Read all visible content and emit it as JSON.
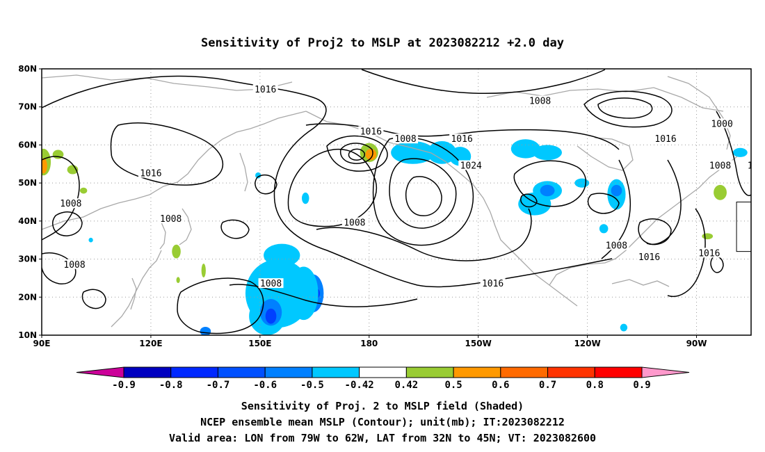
{
  "title": "Sensitivity of Proj2 to MSLP at 2023082212 +2.0 day",
  "map": {
    "lon_range": [
      90,
      285
    ],
    "lat_range": [
      10,
      80
    ],
    "x_ticks": [
      {
        "lon": 90,
        "label": "90E"
      },
      {
        "lon": 120,
        "label": "120E"
      },
      {
        "lon": 150,
        "label": "150E"
      },
      {
        "lon": 180,
        "label": "180"
      },
      {
        "lon": 210,
        "label": "150W"
      },
      {
        "lon": 240,
        "label": "120W"
      },
      {
        "lon": 270,
        "label": "90W"
      },
      {
        "lon": 300,
        "label": "60W"
      }
    ],
    "y_ticks": [
      {
        "lat": 80,
        "label": "80N"
      },
      {
        "lat": 70,
        "label": "70N"
      },
      {
        "lat": 60,
        "label": "60N"
      },
      {
        "lat": 50,
        "label": "50N"
      },
      {
        "lat": 40,
        "label": "40N"
      },
      {
        "lat": 30,
        "label": "30N"
      },
      {
        "lat": 20,
        "label": "20N"
      },
      {
        "lat": 10,
        "label": "10N"
      }
    ],
    "gridlines": true,
    "valid_area_box": {
      "lon": [
        281,
        298
      ],
      "lat": [
        32,
        45
      ]
    },
    "contour_labels": [
      {
        "text": "1016",
        "lon": 151.5,
        "lat": 74.5
      },
      {
        "text": "1008",
        "lon": 227,
        "lat": 71.5
      },
      {
        "text": "1000",
        "lon": 277,
        "lat": 65.5
      },
      {
        "text": "1016",
        "lon": 180.5,
        "lat": 63.5
      },
      {
        "text": "1008",
        "lon": 190,
        "lat": 61.5
      },
      {
        "text": "1016",
        "lon": 205.5,
        "lat": 61.5
      },
      {
        "text": "1016",
        "lon": 261.5,
        "lat": 61.5
      },
      {
        "text": "1016",
        "lon": 120,
        "lat": 52.5
      },
      {
        "text": "1024",
        "lon": 208,
        "lat": 54.5
      },
      {
        "text": "1008",
        "lon": 276.5,
        "lat": 54.5
      },
      {
        "text": "1016",
        "lon": 287,
        "lat": 54.5
      },
      {
        "text": "1008",
        "lon": 98,
        "lat": 44.5
      },
      {
        "text": "1008",
        "lon": 125.5,
        "lat": 40.5
      },
      {
        "text": "1008",
        "lon": 176,
        "lat": 39.5
      },
      {
        "text": "1008",
        "lon": 248,
        "lat": 33.5
      },
      {
        "text": "1016",
        "lon": 257,
        "lat": 30.5
      },
      {
        "text": "1016",
        "lon": 273.5,
        "lat": 31.5
      },
      {
        "text": "1008",
        "lon": 99,
        "lat": 28.5
      },
      {
        "text": "1008",
        "lon": 153,
        "lat": 23.5
      },
      {
        "text": "1016",
        "lon": 214,
        "lat": 23.5
      }
    ],
    "shaded_areas": [
      {
        "color": "#00c8ff",
        "lon": 155,
        "lat": 21,
        "rlon": 9,
        "rlat": 9
      },
      {
        "color": "#00c8ff",
        "lon": 152,
        "lat": 15,
        "rlon": 5,
        "rlat": 5
      },
      {
        "color": "#00c8ff",
        "lon": 156,
        "lat": 31,
        "rlon": 5,
        "rlat": 3
      },
      {
        "color": "#0080ff",
        "lon": 153,
        "lat": 16,
        "rlon": 3,
        "rlat": 3.5
      },
      {
        "color": "#0040ff",
        "lon": 153,
        "lat": 15,
        "rlon": 1.5,
        "rlat": 2
      },
      {
        "color": "#0080ff",
        "lon": 164.5,
        "lat": 21,
        "rlon": 3,
        "rlat": 5
      },
      {
        "color": "#0040ff",
        "lon": 165,
        "lat": 21,
        "rlon": 1.5,
        "rlat": 1.5
      },
      {
        "color": "#00c8ff",
        "lon": 162,
        "lat": 21,
        "rlon": 4,
        "rlat": 7
      },
      {
        "color": "#0080ff",
        "lon": 135,
        "lat": 11,
        "rlon": 1.5,
        "rlat": 1.2
      },
      {
        "color": "#00c8ff",
        "lon": 192,
        "lat": 58,
        "rlon": 6,
        "rlat": 3
      },
      {
        "color": "#00c8ff",
        "lon": 200,
        "lat": 58,
        "rlon": 4,
        "rlat": 3
      },
      {
        "color": "#00c8ff",
        "lon": 205,
        "lat": 57,
        "rlon": 3,
        "rlat": 2.5
      },
      {
        "color": "#00c8ff",
        "lon": 223,
        "lat": 59,
        "rlon": 4,
        "rlat": 2.5
      },
      {
        "color": "#00c8ff",
        "lon": 229,
        "lat": 58,
        "rlon": 4,
        "rlat": 2
      },
      {
        "color": "#00c8ff",
        "lon": 225.5,
        "lat": 44.5,
        "rlon": 4.5,
        "rlat": 3
      },
      {
        "color": "#00c8ff",
        "lon": 229,
        "lat": 48,
        "rlon": 4,
        "rlat": 2.5
      },
      {
        "color": "#0080ff",
        "lon": 229,
        "lat": 48,
        "rlon": 2,
        "rlat": 1.5
      },
      {
        "color": "#00c8ff",
        "lon": 238.5,
        "lat": 50,
        "rlon": 2,
        "rlat": 1.2
      },
      {
        "color": "#00c8ff",
        "lon": 248,
        "lat": 47,
        "rlon": 2.5,
        "rlat": 4
      },
      {
        "color": "#0080ff",
        "lon": 248,
        "lat": 48,
        "rlon": 1.5,
        "rlat": 1.5
      },
      {
        "color": "#00c8ff",
        "lon": 244.5,
        "lat": 38,
        "rlon": 1.2,
        "rlat": 1.2
      },
      {
        "color": "#00c8ff",
        "lon": 291.5,
        "lat": 38,
        "rlon": 3.5,
        "rlat": 3
      },
      {
        "color": "#0080ff",
        "lon": 290.5,
        "lat": 38,
        "rlon": 1,
        "rlat": 1
      },
      {
        "color": "#00c8ff",
        "lon": 282,
        "lat": 58,
        "rlon": 2,
        "rlat": 1.2
      },
      {
        "color": "#00c8ff",
        "lon": 162.5,
        "lat": 46,
        "rlon": 1,
        "rlat": 1.5
      },
      {
        "color": "#00c8ff",
        "lon": 149.5,
        "lat": 52,
        "rlon": 0.8,
        "rlat": 0.8
      },
      {
        "color": "#00c8ff",
        "lon": 301.5,
        "lat": 52,
        "rlon": 0.8,
        "rlat": 0.8
      },
      {
        "color": "#00c8ff",
        "lon": 299,
        "lat": 29,
        "rlon": 1.2,
        "rlat": 1
      },
      {
        "color": "#00c8ff",
        "lon": 250,
        "lat": 12,
        "rlon": 1,
        "rlat": 1
      },
      {
        "color": "#00c8ff",
        "lon": 103.5,
        "lat": 35,
        "rlon": 0.6,
        "rlat": 0.6
      },
      {
        "color": "#99cc33",
        "lon": 180,
        "lat": 58,
        "rlon": 2.5,
        "rlat": 2.5
      },
      {
        "color": "#ff9900",
        "lon": 180.5,
        "lat": 57.5,
        "rlon": 1.5,
        "rlat": 1.5
      },
      {
        "color": "#99cc33",
        "lon": 90.5,
        "lat": 55.5,
        "rlon": 2,
        "rlat": 3.5
      },
      {
        "color": "#ff9900",
        "lon": 90.5,
        "lat": 54.5,
        "rlon": 1,
        "rlat": 2
      },
      {
        "color": "#99cc33",
        "lon": 94.5,
        "lat": 57.5,
        "rlon": 1.5,
        "rlat": 1.2
      },
      {
        "color": "#99cc33",
        "lon": 98.5,
        "lat": 53.5,
        "rlon": 1.5,
        "rlat": 1.2
      },
      {
        "color": "#99cc33",
        "lon": 101.5,
        "lat": 48,
        "rlon": 1,
        "rlat": 0.8
      },
      {
        "color": "#99cc33",
        "lon": 127,
        "lat": 32,
        "rlon": 1.2,
        "rlat": 1.8
      },
      {
        "color": "#99cc33",
        "lon": 134.5,
        "lat": 27,
        "rlon": 0.6,
        "rlat": 1.8
      },
      {
        "color": "#99cc33",
        "lon": 127.5,
        "lat": 24.5,
        "rlon": 0.5,
        "rlat": 0.8
      },
      {
        "color": "#99cc33",
        "lon": 276.5,
        "lat": 47.5,
        "rlon": 1.8,
        "rlat": 2
      },
      {
        "color": "#99cc33",
        "lon": 273,
        "lat": 36,
        "rlon": 1.5,
        "rlat": 0.8
      }
    ]
  },
  "colorbar": {
    "labels": [
      "-0.9",
      "-0.8",
      "-0.7",
      "-0.6",
      "-0.5",
      "-0.42",
      "0.42",
      "0.5",
      "0.6",
      "0.7",
      "0.8",
      "0.9"
    ],
    "colors": [
      "#0000c0",
      "#0028ff",
      "#0050ff",
      "#0080ff",
      "#00c8ff",
      "#ffffff",
      "#99cc33",
      "#ff9900",
      "#ff6a00",
      "#ff3300",
      "#ff0000"
    ],
    "low_tip_color": "#cc0099",
    "high_tip_color": "#ff99cc"
  },
  "captions": [
    "Sensitivity of Proj. 2 to MSLP field (Shaded)",
    "NCEP ensemble mean MSLP (Contour); unit(mb); IT:2023082212",
    "Valid area: LON from 79W to 62W, LAT from 32N to 45N; VT: 2023082600"
  ]
}
